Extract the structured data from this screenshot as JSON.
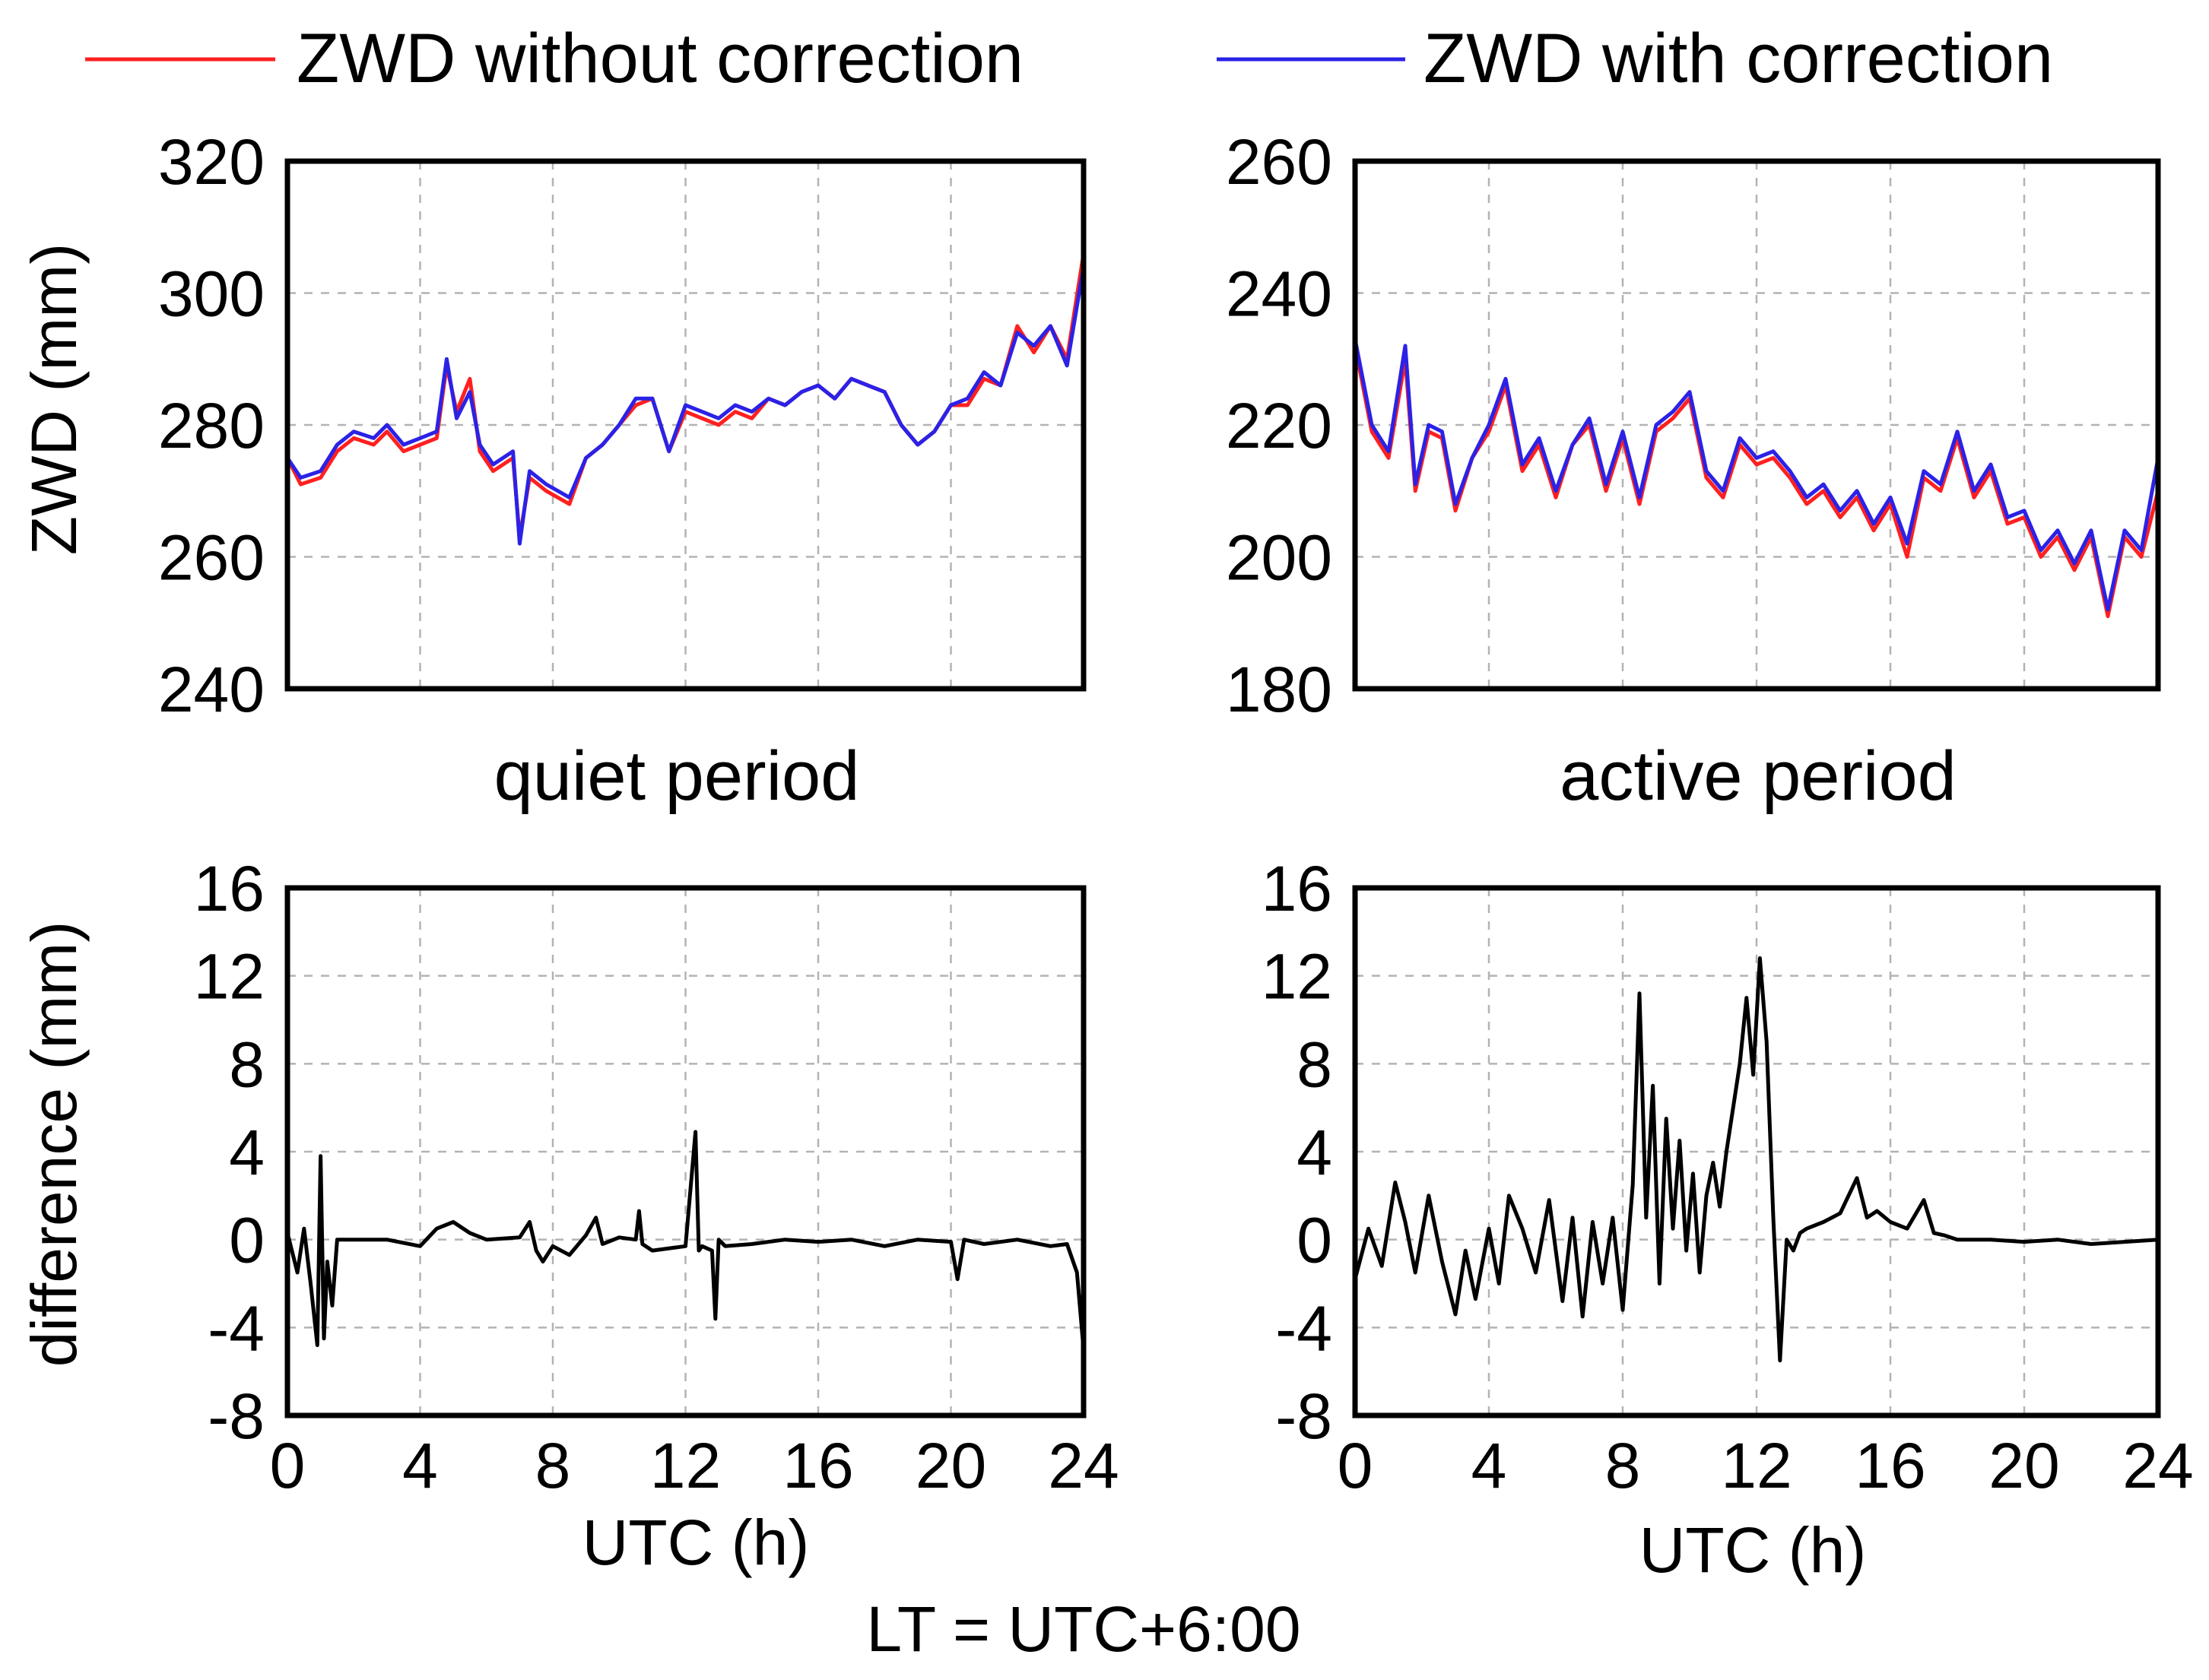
{
  "legend": [
    {
      "label": "ZWD without correction",
      "color": "#ff2020"
    },
    {
      "label": "ZWD with correction",
      "color": "#2b22e6"
    }
  ],
  "footer_note": "LT = UTC+6:00",
  "chart_data": [
    {
      "type": "line",
      "panel": "top-left",
      "title": "quiet period",
      "xlabel": "",
      "ylabel": "ZWD (mm)",
      "xlim": [
        0,
        24
      ],
      "ylim": [
        240,
        320
      ],
      "yticks": [
        "240",
        "260",
        "280",
        "300",
        "320"
      ],
      "series": [
        {
          "name": "ZWD without correction",
          "color": "#ff2020",
          "x": [
            0,
            0.4,
            1,
            1.5,
            2,
            2.6,
            3,
            3.5,
            4,
            4.5,
            4.8,
            5.1,
            5.5,
            5.8,
            6.2,
            6.8,
            7,
            7.3,
            7.8,
            8.5,
            9,
            9.5,
            10,
            10.5,
            11,
            11.5,
            12,
            12.5,
            13,
            13.5,
            14,
            14.5,
            15,
            15.5,
            16,
            16.5,
            17,
            17.5,
            18,
            18.5,
            19,
            19.5,
            20,
            20.5,
            21,
            21.5,
            22,
            22.5,
            23,
            23.5,
            24
          ],
          "values": [
            275,
            271,
            272,
            276,
            278,
            277,
            279,
            276,
            277,
            278,
            289,
            282,
            287,
            276,
            273,
            275,
            263,
            272,
            270,
            268,
            275,
            277,
            280,
            283,
            284,
            276,
            282,
            281,
            280,
            282,
            281,
            284,
            283,
            285,
            286,
            284,
            287,
            286,
            285,
            280,
            277,
            279,
            283,
            283,
            287,
            286,
            295,
            291,
            295,
            290,
            306
          ]
        },
        {
          "name": "ZWD with correction",
          "color": "#2b22e6",
          "x": [
            0,
            0.4,
            1,
            1.5,
            2,
            2.6,
            3,
            3.5,
            4,
            4.5,
            4.8,
            5.1,
            5.5,
            5.8,
            6.2,
            6.8,
            7,
            7.3,
            7.8,
            8.5,
            9,
            9.5,
            10,
            10.5,
            11,
            11.5,
            12,
            12.5,
            13,
            13.5,
            14,
            14.5,
            15,
            15.5,
            16,
            16.5,
            17,
            17.5,
            18,
            18.5,
            19,
            19.5,
            20,
            20.5,
            21,
            21.5,
            22,
            22.5,
            23,
            23.5,
            24
          ],
          "values": [
            275,
            272,
            273,
            277,
            279,
            278,
            280,
            277,
            278,
            279,
            290,
            281,
            285,
            277,
            274,
            276,
            262,
            273,
            271,
            269,
            275,
            277,
            280,
            284,
            284,
            276,
            283,
            282,
            281,
            283,
            282,
            284,
            283,
            285,
            286,
            284,
            287,
            286,
            285,
            280,
            277,
            279,
            283,
            284,
            288,
            286,
            294,
            292,
            295,
            289,
            304
          ]
        }
      ]
    },
    {
      "type": "line",
      "panel": "top-right",
      "title": "active period",
      "xlabel": "",
      "ylabel": "",
      "xlim": [
        0,
        24
      ],
      "ylim": [
        180,
        260
      ],
      "yticks": [
        "180",
        "200",
        "220",
        "240",
        "260"
      ],
      "series": [
        {
          "name": "ZWD without correction",
          "color": "#ff2020",
          "x": [
            0,
            0.5,
            1,
            1.5,
            1.8,
            2.2,
            2.6,
            3,
            3.5,
            4,
            4.5,
            5,
            5.5,
            6,
            6.5,
            7,
            7.5,
            8,
            8.5,
            9,
            9.5,
            10,
            10.5,
            11,
            11.5,
            12,
            12.5,
            13,
            13.5,
            14,
            14.5,
            15,
            15.5,
            16,
            16.5,
            17,
            17.5,
            18,
            18.5,
            19,
            19.5,
            20,
            20.5,
            21,
            21.5,
            22,
            22.5,
            23,
            23.5,
            24
          ],
          "values": [
            232,
            219,
            215,
            230,
            210,
            219,
            218,
            207,
            215,
            219,
            226,
            213,
            217,
            209,
            217,
            220,
            210,
            218,
            208,
            219,
            221,
            224,
            212,
            209,
            217,
            214,
            215,
            212,
            208,
            210,
            206,
            209,
            204,
            208,
            200,
            212,
            210,
            218,
            209,
            213,
            205,
            206,
            200,
            203,
            198,
            203,
            191,
            203,
            200,
            210
          ]
        },
        {
          "name": "ZWD with correction",
          "color": "#2b22e6",
          "x": [
            0,
            0.5,
            1,
            1.5,
            1.8,
            2.2,
            2.6,
            3,
            3.5,
            4,
            4.5,
            5,
            5.5,
            6,
            6.5,
            7,
            7.5,
            8,
            8.5,
            9,
            9.5,
            10,
            10.5,
            11,
            11.5,
            12,
            12.5,
            13,
            13.5,
            14,
            14.5,
            15,
            15.5,
            16,
            16.5,
            17,
            17.5,
            18,
            18.5,
            19,
            19.5,
            20,
            20.5,
            21,
            21.5,
            22,
            22.5,
            23,
            23.5,
            24
          ],
          "values": [
            233,
            220,
            216,
            232,
            211,
            220,
            219,
            208,
            215,
            220,
            227,
            214,
            218,
            210,
            217,
            221,
            211,
            219,
            209,
            220,
            222,
            225,
            213,
            210,
            218,
            215,
            216,
            213,
            209,
            211,
            207,
            210,
            205,
            209,
            202,
            213,
            211,
            219,
            210,
            214,
            206,
            207,
            201,
            204,
            199,
            204,
            192,
            204,
            201,
            215
          ]
        }
      ]
    },
    {
      "type": "line",
      "panel": "bottom-left",
      "title": "",
      "xlabel": "UTC (h)",
      "ylabel": "difference (mm)",
      "xlim": [
        0,
        24
      ],
      "ylim": [
        -8,
        16
      ],
      "xticks": [
        "0",
        "4",
        "8",
        "12",
        "16",
        "20",
        "24"
      ],
      "yticks": [
        "-8",
        "-4",
        "0",
        "4",
        "8",
        "12",
        "16"
      ],
      "series": [
        {
          "name": "difference",
          "color": "#000000",
          "x": [
            0,
            0.3,
            0.5,
            0.7,
            0.9,
            1.0,
            1.1,
            1.2,
            1.35,
            1.5,
            2,
            3,
            4,
            4.5,
            5,
            5.5,
            6,
            7,
            7.3,
            7.5,
            7.7,
            8,
            8.5,
            9,
            9.3,
            9.5,
            10,
            10.5,
            10.6,
            10.7,
            11,
            12,
            12.3,
            12.4,
            12.5,
            12.8,
            12.9,
            13.0,
            13.2,
            14,
            15,
            16,
            17,
            18,
            19,
            20,
            20.2,
            20.4,
            21,
            22,
            23,
            23.5,
            23.8,
            24
          ],
          "values": [
            0.3,
            -1.5,
            0.5,
            -2,
            -4.8,
            3.8,
            -4.5,
            -1,
            -3,
            0,
            0,
            0,
            -0.3,
            0.5,
            0.8,
            0.3,
            0,
            0.1,
            0.8,
            -0.5,
            -1,
            -0.3,
            -0.7,
            0.2,
            1,
            -0.2,
            0.1,
            0,
            1.3,
            -0.2,
            -0.5,
            -0.3,
            4.9,
            -0.5,
            -0.3,
            -0.5,
            -3.6,
            0,
            -0.3,
            -0.2,
            0,
            -0.1,
            0,
            -0.3,
            0,
            -0.1,
            -1.8,
            0,
            -0.2,
            0,
            -0.3,
            -0.2,
            -1.5,
            -5
          ]
        }
      ]
    },
    {
      "type": "line",
      "panel": "bottom-right",
      "title": "",
      "xlabel": "UTC (h)",
      "ylabel": "",
      "xlim": [
        0,
        24
      ],
      "ylim": [
        -8,
        16
      ],
      "xticks": [
        "0",
        "4",
        "8",
        "12",
        "16",
        "20",
        "24"
      ],
      "yticks": [
        "-8",
        "-4",
        "0",
        "4",
        "8",
        "12",
        "16"
      ],
      "series": [
        {
          "name": "difference",
          "color": "#000000",
          "x": [
            0,
            0.4,
            0.8,
            1.2,
            1.5,
            1.8,
            2.2,
            2.6,
            3,
            3.3,
            3.6,
            4,
            4.3,
            4.6,
            5,
            5.4,
            5.8,
            6.2,
            6.5,
            6.8,
            7.1,
            7.4,
            7.7,
            8,
            8.3,
            8.5,
            8.7,
            8.9,
            9.1,
            9.3,
            9.5,
            9.7,
            9.9,
            10.1,
            10.3,
            10.5,
            10.7,
            10.9,
            11.1,
            11.3,
            11.5,
            11.7,
            11.9,
            12.1,
            12.3,
            12.5,
            12.7,
            12.9,
            13.1,
            13.3,
            13.5,
            14,
            14.5,
            15,
            15.3,
            15.6,
            16,
            16.5,
            17,
            17.3,
            17.6,
            18,
            19,
            20,
            21,
            22,
            23,
            24
          ],
          "values": [
            -1.8,
            0.5,
            -1.2,
            2.6,
            0.8,
            -1.5,
            2,
            -1,
            -3.4,
            -0.5,
            -2.7,
            0.5,
            -2,
            2,
            0.5,
            -1.5,
            1.8,
            -2.8,
            1,
            -3.5,
            0.8,
            -2,
            1,
            -3.2,
            2.5,
            11.2,
            1,
            7,
            -2,
            5.5,
            0.5,
            4.5,
            -0.5,
            3,
            -1.5,
            2,
            3.5,
            1.5,
            4,
            6,
            8,
            11,
            7.5,
            12.8,
            9,
            1,
            -5.5,
            0,
            -0.5,
            0.3,
            0.5,
            0.8,
            1.2,
            2.8,
            1,
            1.3,
            0.8,
            0.5,
            1.8,
            0.3,
            0.2,
            0,
            0,
            -0.1,
            0,
            -0.2,
            -0.1,
            0
          ]
        }
      ]
    }
  ]
}
